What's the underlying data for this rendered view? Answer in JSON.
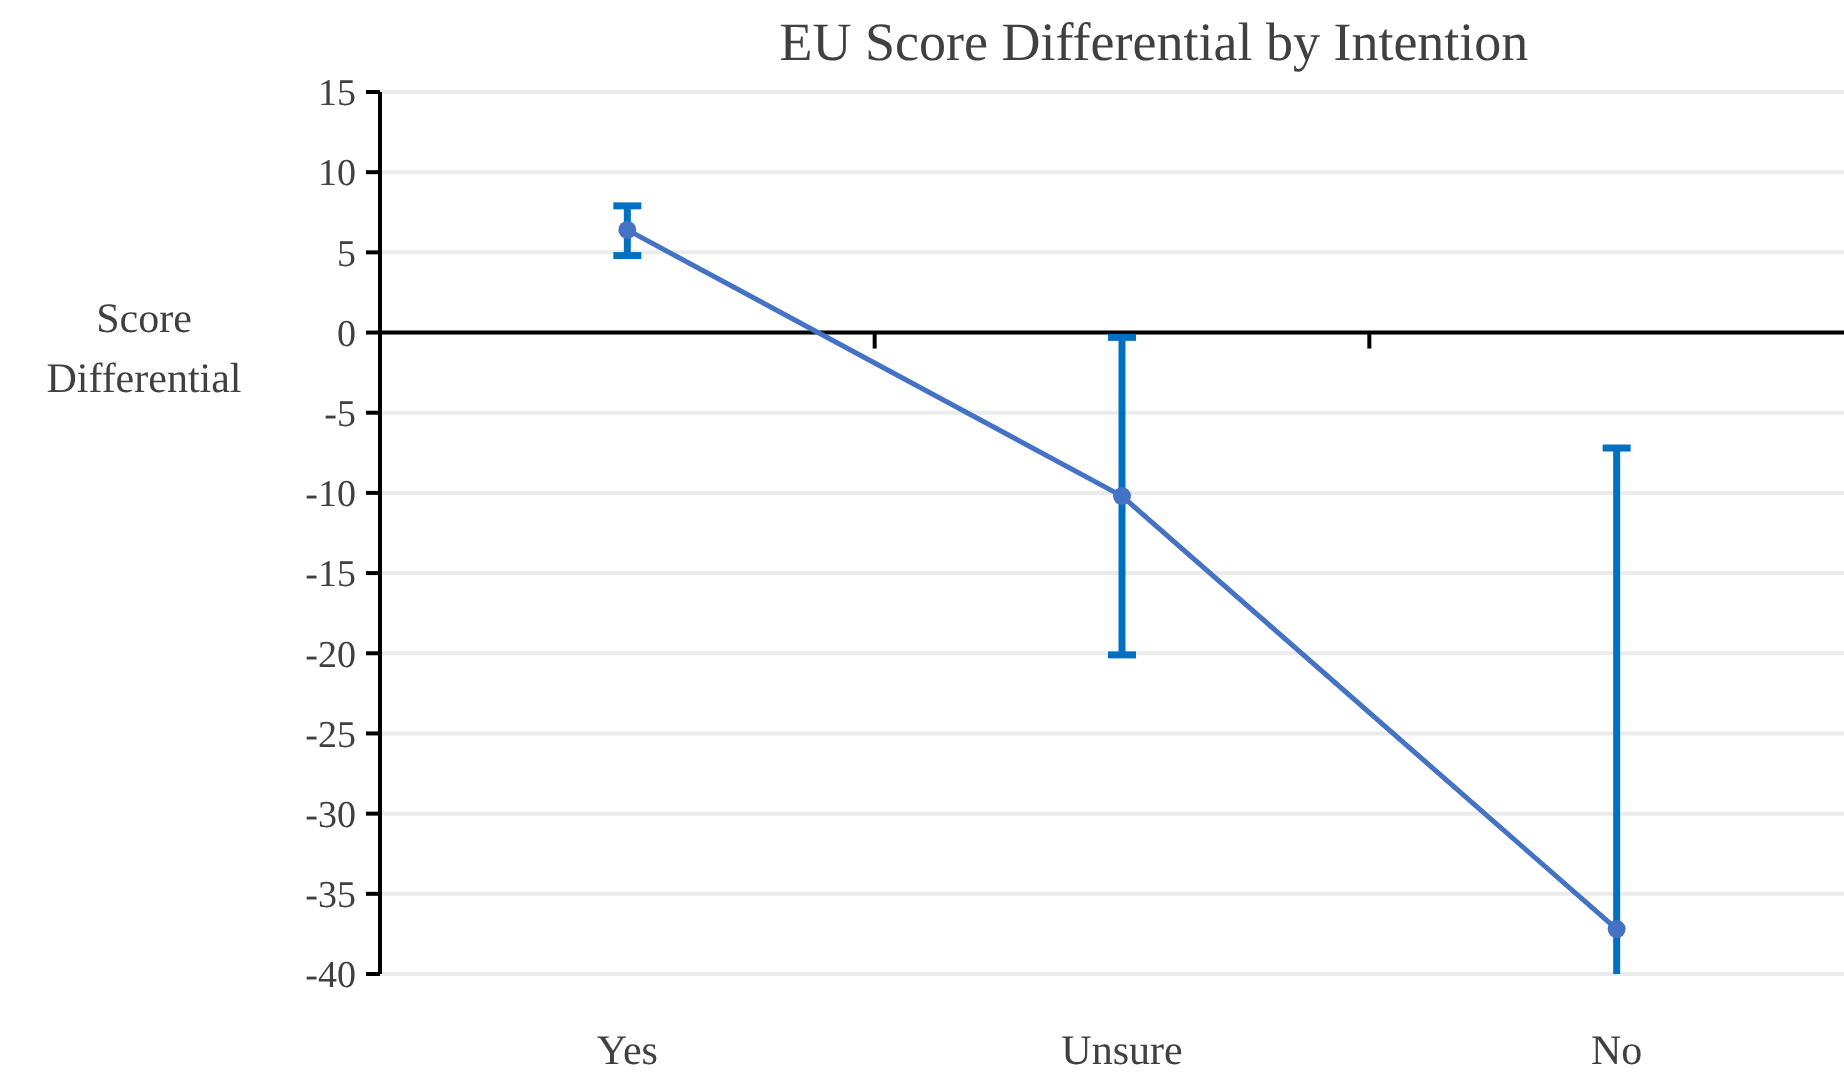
{
  "chart_data": {
    "type": "line",
    "title": "EU Score Differential by Intention",
    "ylabel": "Score Differential",
    "categories": [
      "Yes",
      "Unsure",
      "No"
    ],
    "series": [
      {
        "color": "#4472c4",
        "values": [
          6.4,
          -10.2,
          -37.2
        ],
        "errors": [
          [
            4.8,
            7.9
          ],
          [
            -20.1,
            -0.3
          ],
          [
            -40,
            -7.2
          ]
        ]
      }
    ],
    "ylim": [
      -40,
      15
    ],
    "yticks": [
      15,
      10,
      5,
      0,
      -5,
      -10,
      -15,
      -20,
      -25,
      -30,
      -35,
      -40
    ],
    "grid": "y",
    "marker": "circle",
    "line_style": "solid"
  }
}
